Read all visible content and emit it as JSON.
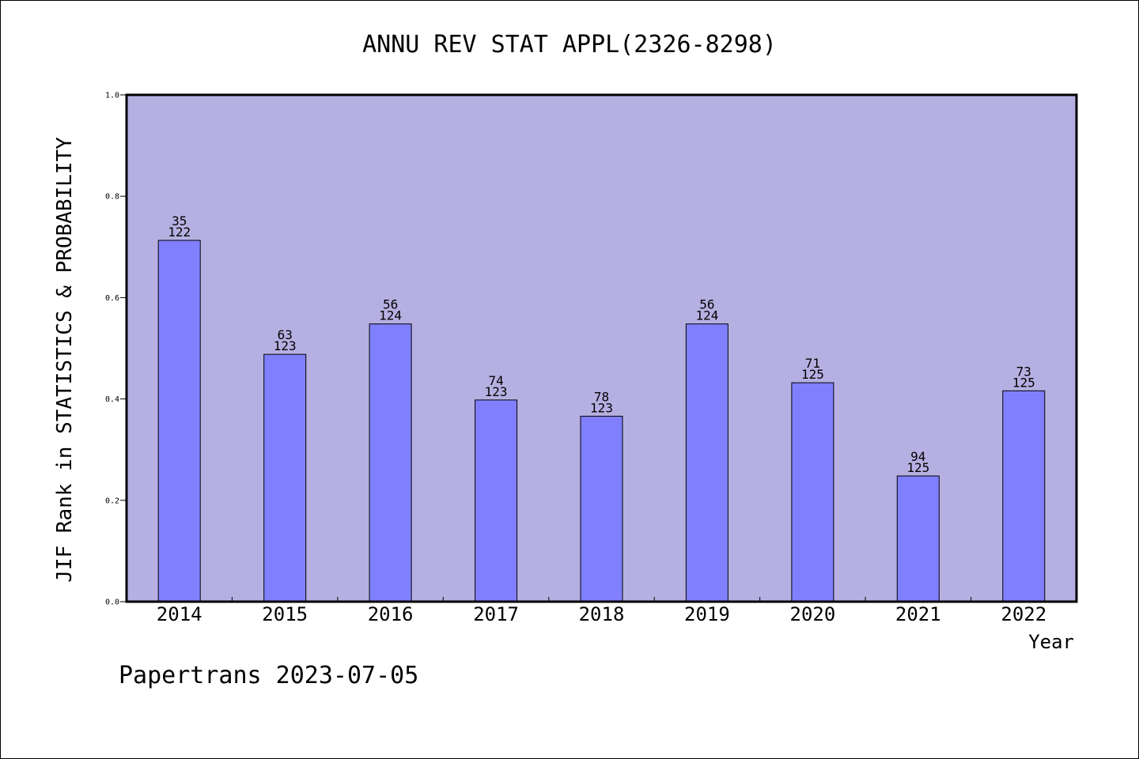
{
  "chart_data": {
    "type": "bar",
    "title": "ANNU REV STAT APPL(2326-8298)",
    "xlabel": "Year",
    "ylabel": "JIF Rank in STATISTICS & PROBABILITY",
    "ylim": [
      0.0,
      1.0
    ],
    "yticks": [
      "0.0",
      "0.2",
      "0.4",
      "0.6",
      "0.8",
      "1.0"
    ],
    "categories": [
      "2014",
      "2015",
      "2016",
      "2017",
      "2018",
      "2019",
      "2020",
      "2021",
      "2022"
    ],
    "values": [
      0.713,
      0.488,
      0.548,
      0.398,
      0.366,
      0.548,
      0.432,
      0.248,
      0.416
    ],
    "ranks": [
      "35",
      "63",
      "56",
      "74",
      "78",
      "56",
      "71",
      "94",
      "73"
    ],
    "totals": [
      "122",
      "123",
      "124",
      "123",
      "123",
      "124",
      "125",
      "125",
      "125"
    ],
    "grid": false,
    "legend": "none",
    "colors": {
      "plot_background": "#b6b0e2",
      "bar_fill": "#8080ff",
      "bar_stroke": "#000000"
    }
  },
  "footer": "Papertrans 2023-07-05"
}
